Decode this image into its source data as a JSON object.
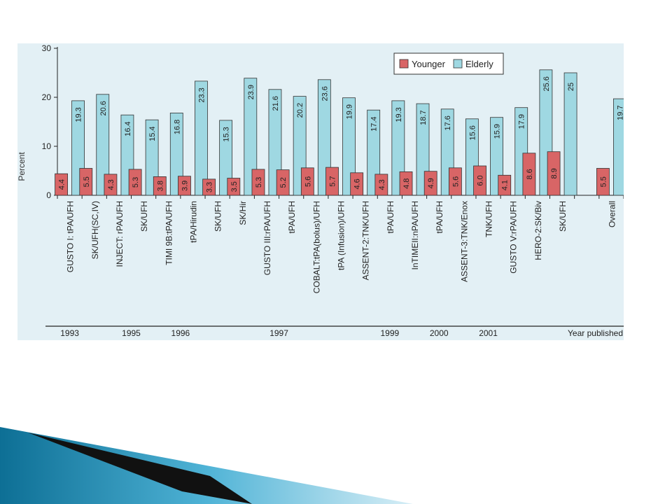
{
  "chart_data": {
    "type": "bar",
    "ylabel": "Percent",
    "ylim": [
      0,
      30
    ],
    "yticks": [
      0,
      10,
      20,
      30
    ],
    "categories": [
      "GUSTO I: tPA/UFH",
      "SK/UFH(SC,IV)",
      "INJECT: rPA/UFH",
      "SK/UFH",
      "TIMI 9B:tPA/UFH",
      "tPA/Hirudin",
      "SK/UFH",
      "SK/Hir",
      "GUSTO III:rPA/UFH",
      "tPA/UFH",
      "COBALT:tPA(bolus)/UFH",
      "tPA (Infusion)/UFH",
      "ASSENT-2:TNK/UFH",
      "tPA/UFH",
      "InTIMEII:nPA/UFH",
      "tPA/UFH",
      "ASSENT-3:TNK/Enox",
      "TNK/UFH",
      "GUSTO V:rPA/UFH",
      "HERO-2:SK/Biv",
      "SK/UFH",
      "",
      "Overall"
    ],
    "series": [
      {
        "name": "Younger",
        "color": "#d86566",
        "values": [
          4.4,
          5.5,
          4.3,
          5.3,
          3.8,
          3.9,
          3.3,
          3.5,
          5.3,
          5.2,
          5.6,
          5.7,
          4.6,
          4.3,
          4.8,
          4.9,
          5.6,
          6.0,
          4.1,
          8.6,
          8.9,
          null,
          5.5
        ],
        "labels": [
          "4.4",
          "5.5",
          "4.3",
          "5.3",
          "3.8",
          "3.9",
          "3.3",
          "3.5",
          "5.3",
          "5.2",
          "5.6",
          "5.7",
          "4.6",
          "4.3",
          "4.8",
          "4.9",
          "5.6",
          "6.0",
          "4.1",
          "8.6",
          "8.9",
          "",
          "5.5"
        ]
      },
      {
        "name": "Elderly",
        "color": "#9fd8e2",
        "values": [
          19.3,
          20.6,
          16.4,
          15.4,
          16.8,
          23.3,
          15.3,
          23.9,
          21.6,
          20.2,
          23.6,
          19.9,
          17.4,
          19.3,
          18.7,
          17.6,
          15.6,
          15.9,
          17.9,
          25.6,
          25,
          null,
          19.7
        ],
        "labels": [
          "19.3",
          "20.6",
          "16.4",
          "15.4",
          "16.8",
          "23.3",
          "15.3",
          "23.9",
          "21.6",
          "20.2",
          "23.6",
          "19.9",
          "17.4",
          "19.3",
          "18.7",
          "17.6",
          "15.6",
          "15.9",
          "17.9",
          "25.6",
          "25",
          "",
          "19.7"
        ]
      }
    ],
    "legend_position": "top-right",
    "grid": false,
    "year_axis": {
      "label": "Year published",
      "years": [
        {
          "label": "1993",
          "category_index": 0
        },
        {
          "label": "1995",
          "category_index": 2.5
        },
        {
          "label": "1996",
          "category_index": 4.5
        },
        {
          "label": "1997",
          "category_index": 8.5
        },
        {
          "label": "1999",
          "category_index": 13
        },
        {
          "label": "2000",
          "category_index": 15
        },
        {
          "label": "2001",
          "category_index": 17
        }
      ]
    },
    "background_color": "#e3f0f5"
  }
}
